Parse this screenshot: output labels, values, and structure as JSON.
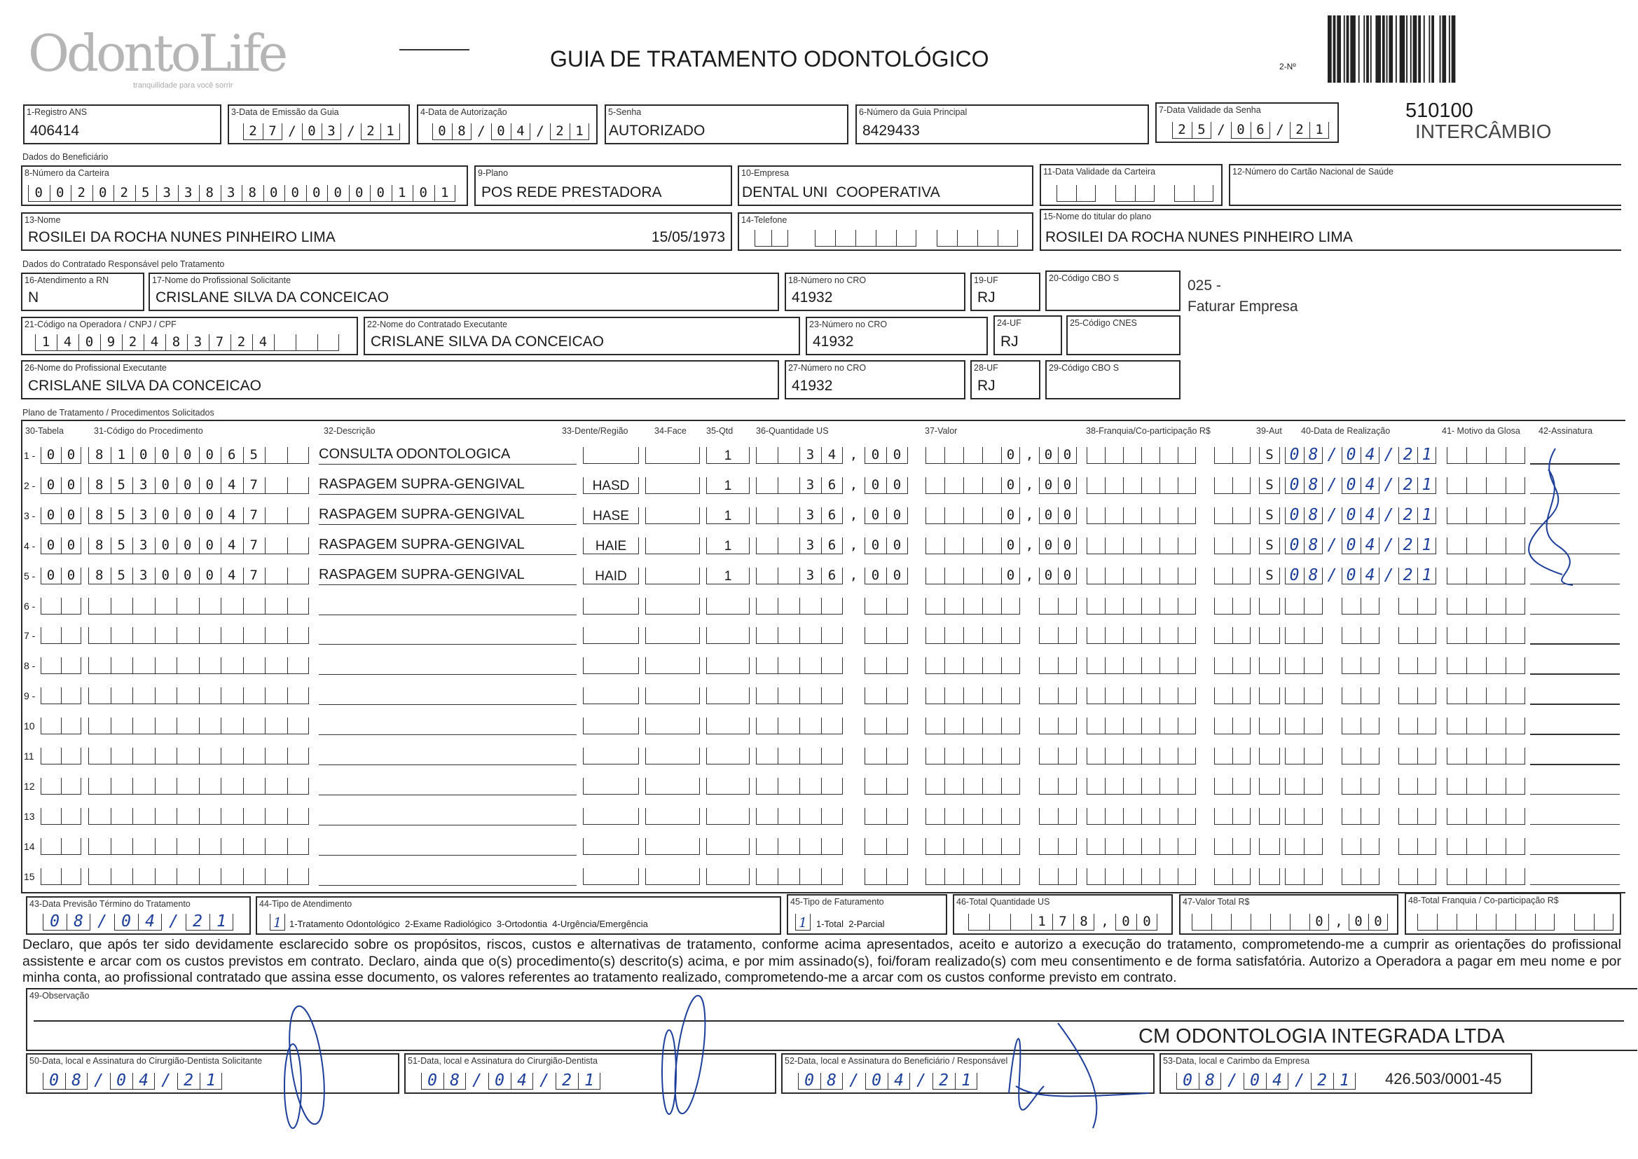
{
  "header": {
    "logo": "OdontoLife",
    "logo_tagline": "tranquilidade para você sorrir",
    "title": "GUIA DE TRATAMENTO ODONTOLÓGICO",
    "numero_label": "2-Nº",
    "code": "510100",
    "code_note": "INTERCÂMBIO"
  },
  "guia": {
    "registro_ans": {
      "label": "1-Registro ANS",
      "value": "406414"
    },
    "data_emissao": {
      "label": "3-Data de Emissão da Guia",
      "value": "27/03/21"
    },
    "data_autorizacao": {
      "label": "4-Data de Autorização",
      "value": "08/04/21"
    },
    "senha": {
      "label": "5-Senha",
      "value": "AUTORIZADO"
    },
    "guia_principal": {
      "label": "6-Número da Guia Principal",
      "value": "8429433"
    },
    "validade_senha": {
      "label": "7-Data Validade da Senha",
      "value": "25/06/21"
    }
  },
  "beneficiario": {
    "section": "Dados do Beneficiário",
    "carteira": {
      "label": "8-Número da Carteira",
      "value": "00202533838000000101"
    },
    "plano": {
      "label": "9-Plano",
      "value": "POS REDE PRESTADORA"
    },
    "empresa": {
      "label": "10-Empresa",
      "value": "DENTAL UNI  COOPERATIVA"
    },
    "validade_carteira": {
      "label": "11-Data Validade da Carteira",
      "value": ""
    },
    "cns": {
      "label": "12-Número do Cartão Nacional de Saúde",
      "value": ""
    },
    "nome": {
      "label": "13-Nome",
      "value": "ROSILEI DA ROCHA NUNES PINHEIRO LIMA",
      "birth": "15/05/1973"
    },
    "telefone": {
      "label": "14-Telefone",
      "value": ""
    },
    "titular": {
      "label": "15-Nome do titular do plano",
      "value": "ROSILEI DA ROCHA NUNES PINHEIRO LIMA"
    }
  },
  "contratado": {
    "section": "Dados do Contratado Responsável pelo Tratamento",
    "rn": {
      "label": "16-Atendimento a RN",
      "value": "N"
    },
    "solicitante": {
      "label": "17-Nome do Profissional Solicitante",
      "value": "CRISLANE SILVA DA CONCEICAO"
    },
    "cro18": {
      "label": "18-Número no CRO",
      "value": "41932"
    },
    "uf19": {
      "label": "19-UF",
      "value": "RJ"
    },
    "cbo20": {
      "label": "20-Código CBO S",
      "value": ""
    },
    "note_code": "025 -",
    "note_text": "Faturar Empresa",
    "codigo_operadora": {
      "label": "21-Código na Operadora / CNPJ / CPF",
      "value": "14092483724"
    },
    "executante_contratado": {
      "label": "22-Nome do Contratado Executante",
      "value": "CRISLANE SILVA DA CONCEICAO"
    },
    "cro23": {
      "label": "23-Número no CRO",
      "value": "41932"
    },
    "uf24": {
      "label": "24-UF",
      "value": "RJ"
    },
    "cnes": {
      "label": "25-Código CNES",
      "value": ""
    },
    "executante": {
      "label": "26-Nome do Profissional Executante",
      "value": "CRISLANE SILVA DA CONCEICAO"
    },
    "cro27": {
      "label": "27-Número no CRO",
      "value": "41932"
    },
    "uf28": {
      "label": "28-UF",
      "value": "RJ"
    },
    "cbo29": {
      "label": "29-Código CBO S",
      "value": ""
    }
  },
  "table": {
    "section": "Plano de Tratamento / Procedimentos Solicitados",
    "headers": {
      "tabela": "30-Tabela",
      "codigo": "31-Código do Procedimento",
      "descricao": "32-Descrição",
      "dente": "33-Dente/Região",
      "face": "34-Face",
      "qtd": "35-Qtd",
      "qtd_us": "36-Quantidade US",
      "valor": "37-Valor",
      "franquia": "38-Franquia/Co-participação R$",
      "aut": "39-Aut",
      "data": "40-Data de Realização",
      "glosa": "41- Motivo da Glosa",
      "assinatura": "42-Assinatura"
    },
    "rows": [
      {
        "n": "1 -",
        "tabela": "00",
        "codigo": "81000065",
        "descricao": "CONSULTA ODONTOLOGICA",
        "dente": "",
        "face": "",
        "qtd": "1",
        "qtd_us": "34,00",
        "valor": "0,00",
        "franquia": "",
        "aut": "S",
        "data": "08/04/21"
      },
      {
        "n": "2 -",
        "tabela": "00",
        "codigo": "85300047",
        "descricao": "RASPAGEM SUPRA-GENGIVAL",
        "dente": "HASD",
        "face": "",
        "qtd": "1",
        "qtd_us": "36,00",
        "valor": "0,00",
        "franquia": "",
        "aut": "S",
        "data": "08/04/21"
      },
      {
        "n": "3 -",
        "tabela": "00",
        "codigo": "85300047",
        "descricao": "RASPAGEM SUPRA-GENGIVAL",
        "dente": "HASE",
        "face": "",
        "qtd": "1",
        "qtd_us": "36,00",
        "valor": "0,00",
        "franquia": "",
        "aut": "S",
        "data": "08/04/21"
      },
      {
        "n": "4 -",
        "tabela": "00",
        "codigo": "85300047",
        "descricao": "RASPAGEM SUPRA-GENGIVAL",
        "dente": "HAIE",
        "face": "",
        "qtd": "1",
        "qtd_us": "36,00",
        "valor": "0,00",
        "franquia": "",
        "aut": "S",
        "data": "08/04/21"
      },
      {
        "n": "5 -",
        "tabela": "00",
        "codigo": "85300047",
        "descricao": "RASPAGEM SUPRA-GENGIVAL",
        "dente": "HAID",
        "face": "",
        "qtd": "1",
        "qtd_us": "36,00",
        "valor": "0,00",
        "franquia": "",
        "aut": "S",
        "data": "08/04/21"
      },
      {
        "n": "6 -"
      },
      {
        "n": "7 -"
      },
      {
        "n": "8 -"
      },
      {
        "n": "9 -"
      },
      {
        "n": "10"
      },
      {
        "n": "11"
      },
      {
        "n": "12"
      },
      {
        "n": "13"
      },
      {
        "n": "14"
      },
      {
        "n": "15"
      }
    ]
  },
  "totais": {
    "previsao": {
      "label": "43-Data Previsão Término do Tratamento",
      "value": "08/04/21"
    },
    "tipo_atendimento": {
      "label": "44-Tipo de Atendimento",
      "value": "1",
      "options": "1-Tratamento Odontológico  2-Exame Radiológico  3-Ortodontia  4-Urgência/Emergência"
    },
    "tipo_faturamento": {
      "label": "45-Tipo de Faturamento",
      "value": "1",
      "options": "1-Total  2-Parcial"
    },
    "total_us": {
      "label": "46-Total Quantidade US",
      "value": "178,00"
    },
    "valor_total": {
      "label": "47-Valor Total R$",
      "value": "0,00"
    },
    "total_franquia": {
      "label": "48-Total Franquia / Co-participação R$",
      "value": ""
    }
  },
  "declaracao": "Declaro, que após ter sido devidamente esclarecido sobre os propósitos, riscos, custos e alternativas de tratamento, conforme acima apresentados, aceito e autorizo a execução do tratamento, comprometendo-me a cumprir as orientações do profissional assistente e arcar com os custos previstos em contrato. Declaro, ainda que o(s) procedimento(s) descrito(s) acima, e por mim assinado(s), foi/foram realizado(s) com meu consentimento e de forma satisfatória. Autorizo a Operadora a pagar em meu nome e por minha conta, ao profissional contratado que assina esse documento, os valores referentes ao tratamento realizado, comprometendo-me a arcar com os custos conforme previsto em contrato.",
  "observacao": {
    "label": "49-Observação",
    "value": ""
  },
  "assinaturas": {
    "s50": {
      "label": "50-Data, local e Assinatura do Cirurgião-Dentista Solicitante",
      "date": "08/04/21"
    },
    "s51": {
      "label": "51-Data, local e Assinatura do Cirurgião-Dentista",
      "date": "08/04/21"
    },
    "s52": {
      "label": "52-Data, local e Assinatura do Beneficiário / Responsável",
      "date": "08/04/21"
    },
    "s53": {
      "label": "53-Data, local e Carimbo da Empresa",
      "date": "08/04/21"
    }
  },
  "stamp": {
    "name": "CM ODONTOLOGIA INTEGRADA LTDA",
    "cnpj": "426.503/0001-45"
  },
  "colors": {
    "ink": "#1a1a1a",
    "handwriting": "#1d3f9a",
    "logo": "#b5b5b5"
  }
}
